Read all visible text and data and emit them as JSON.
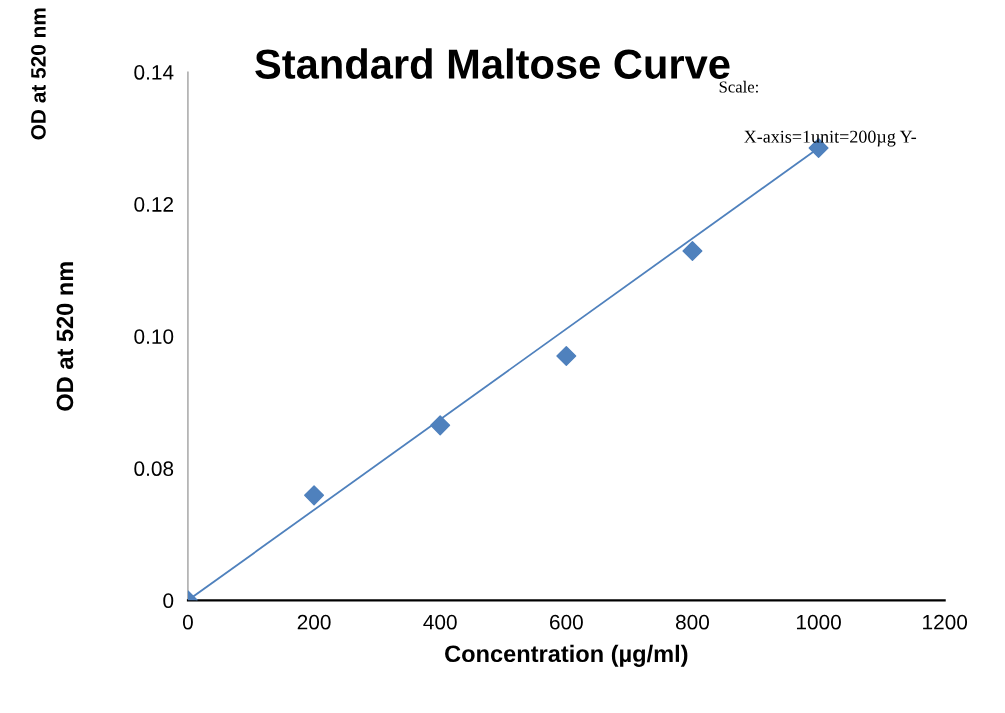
{
  "chart_data": {
    "type": "scatter",
    "title": "Standard Maltose Curve",
    "xlabel": "Concentration (µg/ml)",
    "ylabel": "OD at 520 nm",
    "annotations": [
      "Scale:",
      "X-axis=1unit=200µg Y-",
      "OD at 520 nm"
    ],
    "x": [
      0,
      200,
      400,
      600,
      800,
      1000
    ],
    "series": [
      {
        "color": "#4f81bd",
        "marker": "diamond",
        "values": [
          0.06,
          0.0759,
          0.0865,
          0.097,
          0.1129,
          0.1285
        ]
      },
      {
        "type": "line",
        "color": "#4f81bd",
        "marker": "none",
        "x": [
          0,
          1000
        ],
        "values": [
          0.06,
          0.1285
        ]
      }
    ],
    "xlim": [
      0,
      1200
    ],
    "xticks": [
      0,
      200,
      400,
      600,
      800,
      1000,
      1200
    ],
    "ylim": [
      0.06,
      0.14
    ],
    "yticks": [
      {
        "value": 0.06,
        "label": "0"
      },
      0.08,
      {
        "value": 0.1,
        "label": "0.10"
      },
      0.12,
      0.14
    ],
    "grid": false,
    "legend": false
  }
}
